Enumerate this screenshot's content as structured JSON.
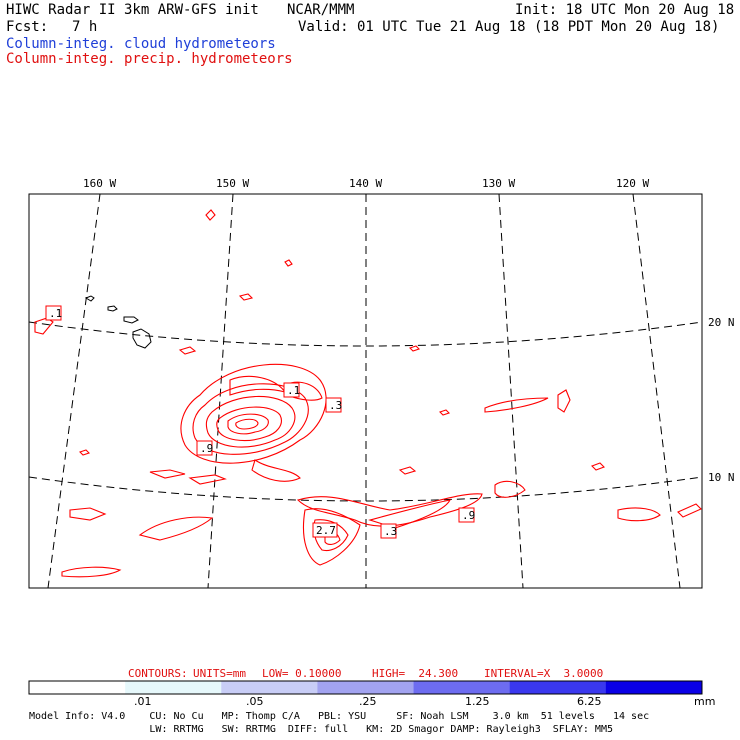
{
  "header": {
    "title": "HIWC Radar II 3km ARW-GFS init",
    "org": "NCAR/MMM",
    "init": "Init: 18 UTC Mon 20 Aug 18",
    "fcst_label": "Fcst:",
    "fcst_value": "7 h",
    "valid": "Valid: 01 UTC Tue 21 Aug 18 (18 PDT Mon 20 Aug 18)",
    "legend_cloud": "Column-integ. cloud hydrometeors",
    "legend_precip": "Column-integ. precip. hydrometeors"
  },
  "map": {
    "lon_labels": [
      "160 W",
      "150 W",
      "140 W",
      "130 W",
      "120 W"
    ],
    "lat_labels": [
      "20 N",
      "10 N"
    ],
    "contour_labels": [
      ".1",
      ".1",
      ".3",
      ".9",
      "2.7",
      ".3",
      ".9"
    ],
    "colors": {
      "precip": "#ff0000",
      "coast": "#000000",
      "grid": "#000000"
    }
  },
  "contours_info": {
    "title": "CONTOURS:",
    "units": "UNITS=mm",
    "low": "LOW= 0.10000",
    "high": "HIGH=  24.300",
    "interval": "INTERVAL=X  3.0000"
  },
  "scale": {
    "labels": [
      ".01",
      ".05",
      ".25",
      "1.25",
      "6.25"
    ],
    "unit": "mm",
    "colors": [
      "#ffffff",
      "#e6f8fb",
      "#c8cdf6",
      "#a2a3f0",
      "#6d6cf0",
      "#3a38ee",
      "#0a00e6"
    ]
  },
  "footer": {
    "line1": "Model Info: V4.0    CU: No Cu   MP: Thomp C/A   PBL: YSU     SF: Noah LSM    3.0 km  51 levels   14 sec",
    "line2": "                    LW: RRTMG   SW: RRTMG  DIFF: full   KM: 2D Smagor DAMP: Rayleigh3  SFLAY: MM5"
  }
}
